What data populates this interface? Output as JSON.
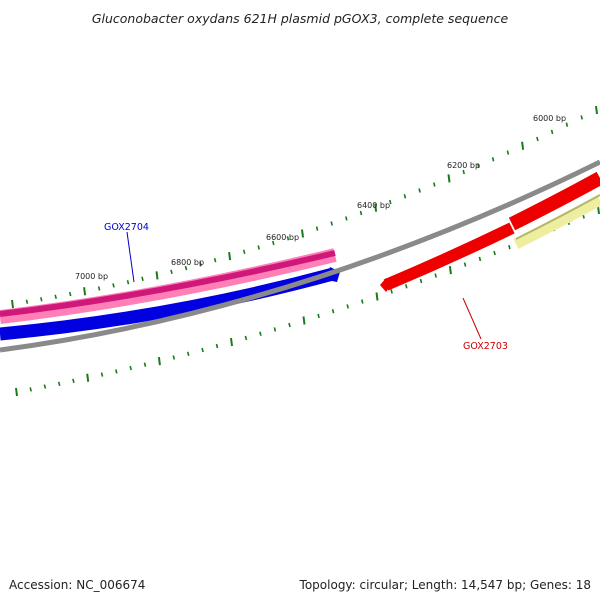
{
  "title": "Gluconobacter oxydans 621H plasmid pGOX3, complete sequence",
  "footer": {
    "accession": "Accession: NC_006674",
    "summary": "Topology: circular; Length: 14,547 bp; Genes: 18"
  },
  "tick_labels": [
    "6000 bp",
    "6200 bp",
    "6400 bp",
    "6600 bp",
    "6800 bp",
    "7000 bp"
  ],
  "genes": [
    {
      "label": "GOX2704",
      "color": "#0000cc"
    },
    {
      "label": "GOX2703",
      "color": "#cc0000"
    }
  ],
  "colors": {
    "backbone": "#808080",
    "ticks": "#1a7a1a",
    "forward_gene": "#e0207f",
    "reverse_gene": "#0000ee",
    "red_gene": "#ee0000",
    "pale_gene": "#eeeea0"
  }
}
